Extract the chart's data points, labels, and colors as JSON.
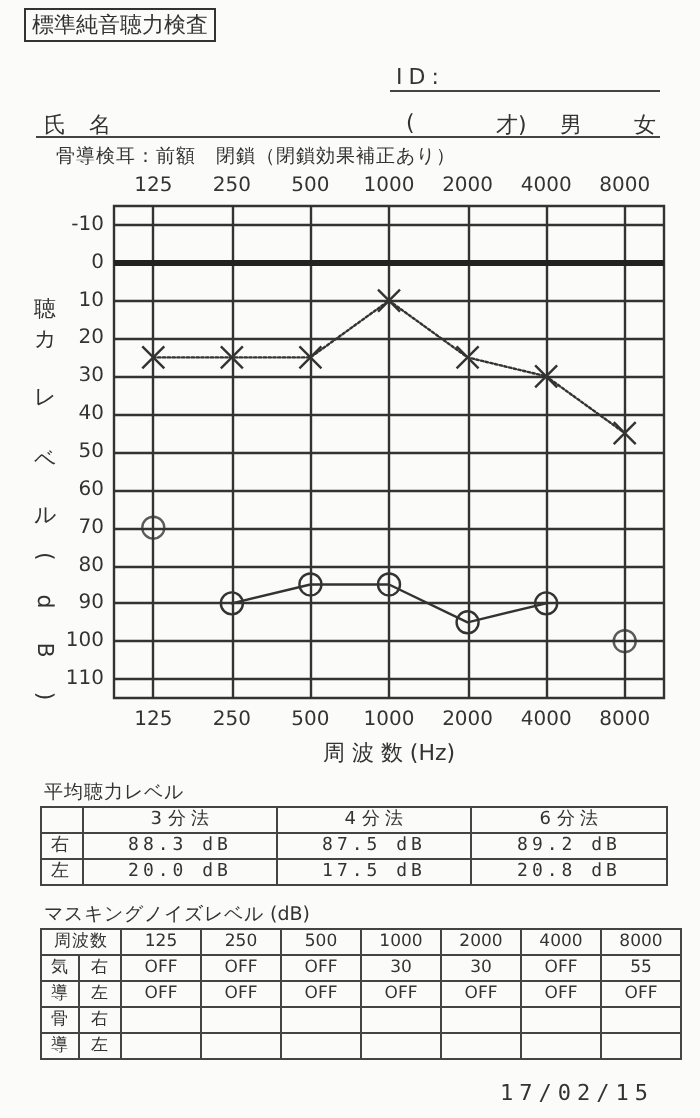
{
  "chart_data": {
    "type": "line",
    "title": "標準純音聴力検査",
    "subtitle": "骨導検耳：前額　閉鎖（閉鎖効果補正あり）",
    "xlabel": "周 波 数 (Hz)",
    "ylabel": "聴カレベル(dB)",
    "categories": [
      "125",
      "250",
      "500",
      "1000",
      "2000",
      "4000",
      "8000"
    ],
    "series": [
      {
        "type": "line",
        "color": "#333333",
        "marker": "cross",
        "line_style": "dotted",
        "values": [
          25,
          25,
          25,
          10,
          25,
          30,
          45
        ]
      },
      {
        "type": "line",
        "color": "#333333",
        "marker": "circle",
        "line_style": "solid",
        "values": [
          null,
          90,
          85,
          85,
          95,
          90,
          null
        ]
      },
      {
        "type": "scatter",
        "color": "#333333",
        "marker": "circle",
        "values": [
          70,
          null,
          null,
          null,
          null,
          null,
          100
        ]
      }
    ],
    "ylim": [
      115,
      -15
    ],
    "yticks": [
      -10,
      0,
      10,
      20,
      30,
      40,
      50,
      60,
      70,
      80,
      90,
      100,
      110
    ],
    "grid": true,
    "ref_lines": [
      {
        "axis": "y",
        "value": 0,
        "color": "#222222"
      }
    ],
    "annotations": [
      "ID:",
      "氏 名",
      "(",
      "才)",
      "男",
      "女",
      "平均聴力レベル",
      "3 分 法",
      "4 分 法",
      "6 分 法",
      "右",
      "88.3 dB",
      "87.5 dB",
      "89.2 dB",
      "左",
      "20.0 dB",
      "17.5 dB",
      "20.8 dB",
      "マスキングノイズレベル (dB)",
      "周波数",
      "125",
      "250",
      "500",
      "1000",
      "2000",
      "4000",
      "8000",
      "気",
      "右",
      "OFF",
      "OFF",
      "OFF",
      "30",
      "30",
      "OFF",
      "55",
      "導",
      "左",
      "OFF",
      "OFF",
      "OFF",
      "OFF",
      "OFF",
      "OFF",
      "OFF",
      "骨",
      "右",
      "導",
      "左",
      "17/02/15"
    ]
  }
}
